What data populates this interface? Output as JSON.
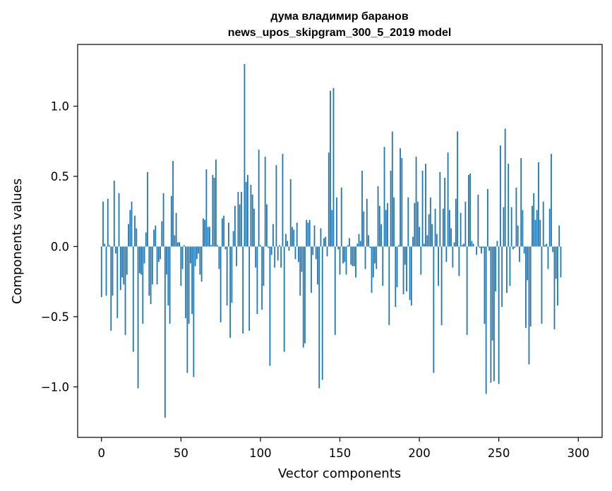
{
  "chart_data": {
    "type": "bar",
    "title_line1": "дума владимир баранов",
    "title_line2": "news_upos_skipgram_300_5_2019 model",
    "xlabel": "Vector components",
    "ylabel": "Components values",
    "xlim": [
      -15,
      315
    ],
    "ylim": [
      -1.36,
      1.44
    ],
    "xticks": [
      0,
      50,
      100,
      150,
      200,
      250,
      300
    ],
    "xtick_labels": [
      "0",
      "50",
      "100",
      "150",
      "200",
      "250",
      "300"
    ],
    "yticks": [
      -1.0,
      -0.5,
      0.0,
      0.5,
      1.0
    ],
    "ytick_labels": [
      "−1.0",
      "−0.5",
      "0.0",
      "0.5",
      "1.0"
    ],
    "grid": false,
    "bar_color": "#1f77b4",
    "values": [
      -0.36,
      0.32,
      0.02,
      -0.35,
      0.34,
      0.01,
      -0.6,
      -0.35,
      0.47,
      -0.05,
      -0.51,
      0.38,
      -0.31,
      -0.22,
      -0.27,
      -0.63,
      -0.2,
      0.16,
      0.26,
      0.32,
      -0.75,
      0.22,
      0.13,
      -1.01,
      -0.19,
      -0.2,
      -0.55,
      -0.12,
      0.1,
      0.53,
      -0.35,
      -0.41,
      -0.27,
      0.12,
      0.15,
      -0.27,
      -0.11,
      -0.09,
      0.18,
      0.38,
      -1.22,
      -0.2,
      -0.42,
      -0.55,
      0.36,
      0.61,
      0.08,
      0.24,
      0.03,
      0.03,
      -0.28,
      -0.16,
      0.01,
      -0.51,
      -0.9,
      -0.55,
      -0.12,
      -0.48,
      -0.93,
      -0.14,
      -0.09,
      -0.05,
      -0.2,
      -0.25,
      0.2,
      0.19,
      0.55,
      0.14,
      0.14,
      0.01,
      0.51,
      0.49,
      0.62,
      0.01,
      -0.16,
      -0.54,
      0.2,
      0.22,
      -0.02,
      -0.42,
      0.17,
      -0.65,
      -0.4,
      0.11,
      0.29,
      -0.14,
      0.39,
      0.3,
      0.39,
      -0.62,
      1.3,
      0.46,
      0.51,
      -0.6,
      0.44,
      0.37,
      0.27,
      -0.15,
      -0.48,
      0.69,
      0.01,
      -0.45,
      -0.28,
      0.64,
      0.3,
      -0.01,
      -0.85,
      -0.06,
      0.16,
      -0.15,
      0.58,
      -0.1,
      0.01,
      -0.15,
      0.66,
      -0.75,
      0.09,
      0.04,
      -0.03,
      0.48,
      0.14,
      0.12,
      -0.09,
      0.17,
      -0.11,
      -0.35,
      -0.18,
      -0.72,
      -0.69,
      0.19,
      0.17,
      0.19,
      -0.33,
      -0.06,
      0.15,
      -0.09,
      -0.27,
      -1.01,
      0.13,
      -0.95,
      0.06,
      0.07,
      -0.07,
      0.67,
      1.11,
      0.26,
      1.13,
      -0.63,
      0.35,
      -0.02,
      -0.2,
      0.42,
      -0.12,
      -0.11,
      -0.2,
      0.01,
      0.06,
      -0.13,
      -0.14,
      -0.14,
      -0.22,
      0.02,
      0.09,
      0.04,
      0.54,
      0.25,
      -0.16,
      0.34,
      0.08,
      -0.01,
      -0.33,
      -0.22,
      -0.12,
      -0.16,
      0.43,
      0.29,
      0.16,
      -0.28,
      0.71,
      0.26,
      0.31,
      -0.56,
      0.54,
      0.82,
      0.35,
      -0.43,
      -0.29,
      0.01,
      0.7,
      0.63,
      -0.34,
      -0.13,
      -0.32,
      0.35,
      -0.38,
      -0.42,
      0.07,
      0.31,
      0.64,
      0.32,
      0.14,
      -0.2,
      0.54,
      0.02,
      0.59,
      0.08,
      0.23,
      0.35,
      0.16,
      -0.9,
      0.27,
      0.09,
      -0.28,
      0.53,
      -0.56,
      0.27,
      0.49,
      -0.11,
      0.67,
      0.26,
      0.13,
      -0.15,
      0.03,
      0.34,
      0.82,
      -0.21,
      0.24,
      0.01,
      0.02,
      0.32,
      -0.63,
      0.51,
      0.52,
      0.04,
      0.02,
      0.0,
      -0.06,
      0.37,
      -0.01,
      -0.05,
      -0.01,
      -0.55,
      -1.05,
      0.41,
      -0.03,
      -0.97,
      -0.67,
      -0.96,
      -0.32,
      0.04,
      -0.98,
      0.72,
      -0.43,
      0.28,
      0.84,
      -0.33,
      0.59,
      -0.28,
      0.28,
      -0.02,
      -0.01,
      0.42,
      0.15,
      -0.11,
      0.63,
      0.26,
      -0.05,
      -0.58,
      -0.24,
      -0.84,
      -0.57,
      0.29,
      0.38,
      0.19,
      0.26,
      0.6,
      0.19,
      -0.55,
      0.32,
      0.01,
      0.02,
      -0.16,
      0.27,
      0.66,
      -0.04,
      -0.59,
      -0.23,
      -0.42,
      0.15,
      -0.22
    ]
  }
}
